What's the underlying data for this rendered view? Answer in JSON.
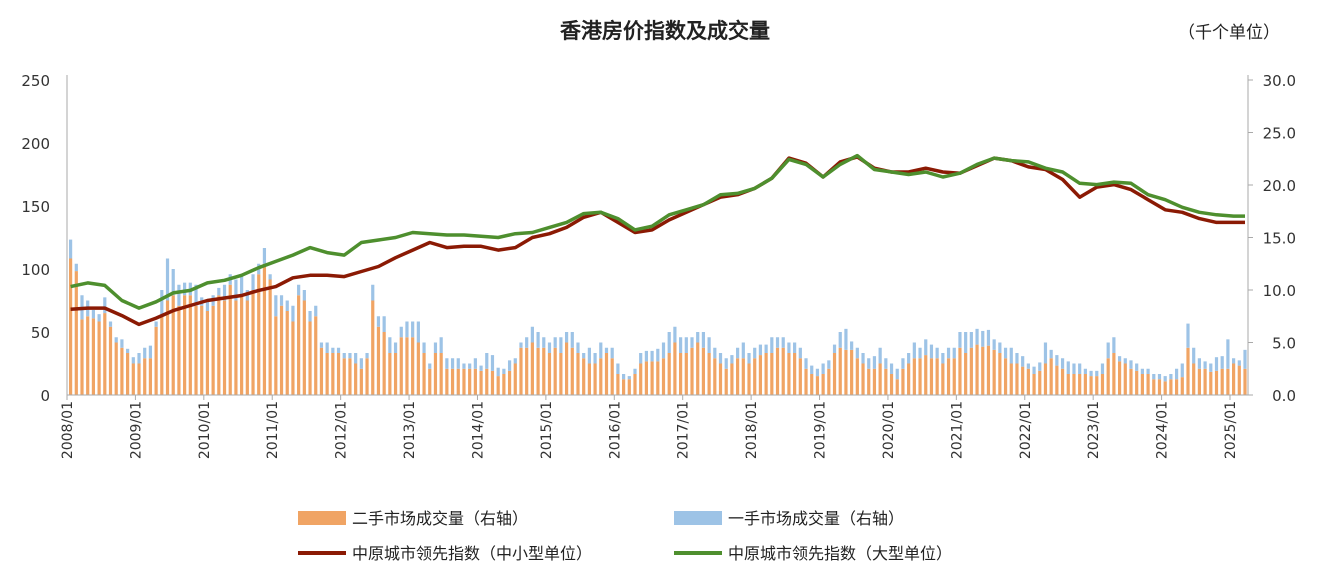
{
  "chart_data": {
    "type": "bar+line",
    "title": "香港房价指数及成交量",
    "right_axis_unit": "（千个单位）",
    "left_axis": {
      "range": [
        0,
        250
      ],
      "ticks": [
        "0",
        "50",
        "100",
        "150",
        "200",
        "250"
      ]
    },
    "right_axis": {
      "range": [
        0,
        30
      ],
      "ticks": [
        "0.0",
        "5.0",
        "10.0",
        "15.0",
        "20.0",
        "25.0",
        "30.0"
      ]
    },
    "x_ticks": [
      "2008/01",
      "2009/01",
      "2010/01",
      "2011/01",
      "2012/01",
      "2013/01",
      "2014/01",
      "2015/01",
      "2016/01",
      "2017/01",
      "2018/01",
      "2019/01",
      "2020/01",
      "2021/01",
      "2022/01",
      "2023/01",
      "2024/01",
      "2025/01"
    ],
    "grid": false,
    "legend_position": "bottom",
    "colors": {
      "secondary": "#F0A464",
      "primary": "#9DC3E6",
      "small_mid": "#8B1A04",
      "large": "#4E8F2E"
    },
    "legend": {
      "secondary": "二手市场成交量（右轴）",
      "primary": "一手市场成交量（右轴）",
      "small_mid": "中原城市领先指数（中小型单位）",
      "large": "中原城市领先指数（大型单位）"
    },
    "bars_monthly": [
      {
        "year": 2008,
        "secondary": [
          13.0,
          11.8,
          7.2,
          7.5,
          7.3,
          7.0,
          7.8,
          6.5,
          5.0,
          4.5,
          4.0,
          3.0
        ],
        "primary": [
          1.8,
          0.7,
          2.3,
          1.5,
          0.8,
          0.7,
          1.5,
          0.5,
          0.5,
          0.8,
          0.4,
          0.6
        ]
      },
      {
        "year": 2009,
        "secondary": [
          3.0,
          3.5,
          3.5,
          6.5,
          7.5,
          9.0,
          9.5,
          8.5,
          9.5,
          9.5,
          8.5,
          8.5
        ],
        "primary": [
          1.0,
          1.0,
          1.2,
          0.5,
          2.5,
          4.0,
          2.5,
          2.0,
          1.2,
          1.2,
          2.0,
          0.8
        ]
      },
      {
        "year": 2010,
        "secondary": [
          8.0,
          8.5,
          9.5,
          9.0,
          10.5,
          9.0,
          9.5,
          9.0,
          10.0,
          11.5,
          12.5,
          11.0
        ],
        "primary": [
          1.0,
          1.0,
          0.7,
          1.5,
          1.0,
          2.0,
          2.0,
          1.0,
          1.5,
          1.0,
          1.5,
          0.5
        ]
      },
      {
        "year": 2011,
        "secondary": [
          7.5,
          8.5,
          8.0,
          7.0,
          9.5,
          9.0,
          7.0,
          7.5,
          4.5,
          4.0,
          4.0,
          4.0
        ],
        "primary": [
          2.0,
          1.0,
          1.0,
          1.5,
          1.0,
          1.0,
          1.0,
          1.0,
          0.5,
          1.0,
          0.5,
          0.5
        ]
      },
      {
        "year": 2012,
        "secondary": [
          3.5,
          3.5,
          3.0,
          2.5,
          3.5,
          9.0,
          6.5,
          6.0,
          4.0,
          4.0,
          5.5,
          5.5
        ],
        "primary": [
          0.5,
          0.5,
          1.0,
          1.0,
          0.5,
          1.5,
          1.0,
          1.5,
          1.5,
          1.0,
          1.0,
          1.5
        ]
      },
      {
        "year": 2013,
        "secondary": [
          5.5,
          5.0,
          4.0,
          2.5,
          4.0,
          4.0,
          2.5,
          2.5,
          2.5,
          2.5,
          2.5,
          2.5
        ],
        "primary": [
          1.5,
          2.0,
          1.0,
          0.5,
          1.0,
          1.5,
          1.0,
          1.0,
          1.0,
          0.5,
          0.5,
          1.0
        ]
      },
      {
        "year": 2014,
        "secondary": [
          2.3,
          2.5,
          2.3,
          1.8,
          2.0,
          2.3,
          3.0,
          4.5,
          4.5,
          5.0,
          4.5,
          4.5
        ],
        "primary": [
          0.5,
          1.5,
          1.5,
          0.8,
          0.5,
          1.0,
          0.5,
          0.5,
          1.0,
          1.5,
          1.5,
          1.0
        ]
      },
      {
        "year": 2015,
        "secondary": [
          4.0,
          4.5,
          4.0,
          5.0,
          4.5,
          4.0,
          3.5,
          3.0,
          3.0,
          3.5,
          4.0,
          3.5
        ],
        "primary": [
          1.0,
          1.0,
          1.5,
          1.0,
          1.5,
          1.0,
          0.5,
          1.5,
          1.0,
          1.5,
          0.5,
          1.0
        ]
      },
      {
        "year": 2016,
        "secondary": [
          2.0,
          1.5,
          1.5,
          2.0,
          3.0,
          3.2,
          3.2,
          3.2,
          3.5,
          4.0,
          5.0,
          4.0
        ],
        "primary": [
          1.0,
          0.5,
          0.3,
          0.5,
          1.0,
          1.0,
          1.0,
          1.2,
          1.5,
          2.0,
          1.5,
          1.5
        ]
      },
      {
        "year": 2017,
        "secondary": [
          4.0,
          4.5,
          5.0,
          4.5,
          4.0,
          3.5,
          3.0,
          2.5,
          3.0,
          3.5,
          3.5,
          3.0
        ],
        "primary": [
          1.5,
          1.0,
          1.0,
          1.5,
          1.5,
          1.0,
          1.0,
          1.0,
          0.8,
          1.0,
          1.5,
          1.0
        ]
      },
      {
        "year": 2018,
        "secondary": [
          3.5,
          3.8,
          4.0,
          4.0,
          4.5,
          4.5,
          4.0,
          4.0,
          3.5,
          2.5,
          2.0,
          1.8
        ],
        "primary": [
          1.0,
          1.0,
          0.8,
          1.5,
          1.0,
          1.0,
          1.0,
          1.0,
          1.0,
          1.0,
          0.8,
          0.7
        ]
      },
      {
        "year": 2019,
        "secondary": [
          2.0,
          2.5,
          4.0,
          4.5,
          4.3,
          4.3,
          3.5,
          3.0,
          2.5,
          2.5,
          3.0,
          2.5
        ],
        "primary": [
          1.0,
          0.8,
          0.8,
          1.5,
          2.0,
          0.8,
          1.0,
          1.0,
          1.0,
          1.2,
          1.5,
          1.0
        ]
      },
      {
        "year": 2020,
        "secondary": [
          2.0,
          1.5,
          2.5,
          3.0,
          3.5,
          3.5,
          3.8,
          3.5,
          3.5,
          3.0,
          3.5,
          3.5
        ],
        "primary": [
          1.0,
          1.0,
          1.0,
          1.0,
          1.5,
          1.0,
          1.5,
          1.3,
          1.0,
          1.0,
          1.0,
          1.0
        ]
      },
      {
        "year": 2021,
        "secondary": [
          4.5,
          4.0,
          4.5,
          4.8,
          4.6,
          4.7,
          4.3,
          4.0,
          3.5,
          3.0,
          3.0,
          2.7
        ],
        "primary": [
          1.5,
          2.0,
          1.5,
          1.5,
          1.5,
          1.5,
          1.0,
          1.0,
          1.0,
          1.5,
          1.0,
          1.0
        ]
      },
      {
        "year": 2022,
        "secondary": [
          2.5,
          2.0,
          2.3,
          3.0,
          3.5,
          2.8,
          2.5,
          2.0,
          2.0,
          2.0,
          2.0,
          1.8
        ],
        "primary": [
          0.5,
          0.7,
          0.8,
          2.0,
          0.8,
          1.0,
          1.0,
          1.2,
          1.0,
          1.0,
          0.5,
          0.5
        ]
      },
      {
        "year": 2023,
        "secondary": [
          1.8,
          2.0,
          3.5,
          4.0,
          3.2,
          3.0,
          2.5,
          2.3,
          2.0,
          2.0,
          1.5,
          1.5
        ],
        "primary": [
          0.5,
          1.0,
          1.5,
          1.5,
          0.5,
          0.5,
          0.8,
          0.7,
          0.5,
          0.5,
          0.5,
          0.5
        ]
      },
      {
        "year": 2024,
        "secondary": [
          1.3,
          1.5,
          1.5,
          1.7,
          4.5,
          3.0,
          2.5,
          2.5,
          2.2,
          2.3,
          2.5,
          2.5
        ],
        "primary": [
          0.5,
          0.5,
          1.0,
          1.3,
          2.3,
          1.5,
          1.0,
          0.7,
          0.8,
          1.3,
          1.2,
          2.8
        ]
      },
      {
        "year": 2025,
        "secondary": [
          3.0,
          2.8,
          2.5
        ],
        "primary": [
          0.5,
          0.5,
          1.8
        ]
      }
    ],
    "lines": {
      "small_mid": [
        [
          "2008/01",
          68
        ],
        [
          "2008/04",
          69
        ],
        [
          "2008/07",
          69
        ],
        [
          "2008/10",
          63
        ],
        [
          "2009/01",
          56
        ],
        [
          "2009/04",
          61
        ],
        [
          "2009/07",
          67
        ],
        [
          "2009/10",
          71
        ],
        [
          "2010/01",
          75
        ],
        [
          "2010/04",
          77
        ],
        [
          "2010/07",
          79
        ],
        [
          "2010/10",
          83
        ],
        [
          "2011/01",
          86
        ],
        [
          "2011/04",
          93
        ],
        [
          "2011/07",
          95
        ],
        [
          "2011/10",
          95
        ],
        [
          "2012/01",
          94
        ],
        [
          "2012/04",
          98
        ],
        [
          "2012/07",
          102
        ],
        [
          "2012/10",
          109
        ],
        [
          "2013/01",
          115
        ],
        [
          "2013/04",
          121
        ],
        [
          "2013/07",
          117
        ],
        [
          "2013/10",
          118
        ],
        [
          "2014/01",
          118
        ],
        [
          "2014/04",
          115
        ],
        [
          "2014/07",
          117
        ],
        [
          "2014/10",
          125
        ],
        [
          "2015/01",
          128
        ],
        [
          "2015/04",
          133
        ],
        [
          "2015/07",
          141
        ],
        [
          "2015/10",
          145
        ],
        [
          "2016/01",
          137
        ],
        [
          "2016/04",
          129
        ],
        [
          "2016/07",
          131
        ],
        [
          "2016/10",
          139
        ],
        [
          "2017/01",
          145
        ],
        [
          "2017/04",
          151
        ],
        [
          "2017/07",
          157
        ],
        [
          "2017/10",
          159
        ],
        [
          "2018/01",
          164
        ],
        [
          "2018/04",
          172
        ],
        [
          "2018/07",
          188
        ],
        [
          "2018/10",
          184
        ],
        [
          "2019/01",
          173
        ],
        [
          "2019/04",
          185
        ],
        [
          "2019/07",
          189
        ],
        [
          "2019/10",
          180
        ],
        [
          "2020/01",
          177
        ],
        [
          "2020/04",
          177
        ],
        [
          "2020/07",
          180
        ],
        [
          "2020/10",
          177
        ],
        [
          "2021/01",
          176
        ],
        [
          "2021/04",
          182
        ],
        [
          "2021/07",
          188
        ],
        [
          "2021/10",
          186
        ],
        [
          "2022/01",
          181
        ],
        [
          "2022/04",
          179
        ],
        [
          "2022/07",
          171
        ],
        [
          "2022/10",
          157
        ],
        [
          "2023/01",
          165
        ],
        [
          "2023/04",
          167
        ],
        [
          "2023/07",
          163
        ],
        [
          "2023/10",
          155
        ],
        [
          "2024/01",
          147
        ],
        [
          "2024/04",
          145
        ],
        [
          "2024/07",
          140
        ],
        [
          "2024/10",
          137
        ],
        [
          "2025/01",
          137
        ],
        [
          "2025/03",
          137
        ]
      ],
      "large": [
        [
          "2008/01",
          86
        ],
        [
          "2008/04",
          89
        ],
        [
          "2008/07",
          87
        ],
        [
          "2008/10",
          75
        ],
        [
          "2009/01",
          69
        ],
        [
          "2009/04",
          74
        ],
        [
          "2009/07",
          81
        ],
        [
          "2009/10",
          83
        ],
        [
          "2010/01",
          89
        ],
        [
          "2010/04",
          91
        ],
        [
          "2010/07",
          95
        ],
        [
          "2010/10",
          101
        ],
        [
          "2011/01",
          106
        ],
        [
          "2011/04",
          111
        ],
        [
          "2011/07",
          117
        ],
        [
          "2011/10",
          113
        ],
        [
          "2012/01",
          111
        ],
        [
          "2012/04",
          121
        ],
        [
          "2012/07",
          123
        ],
        [
          "2012/10",
          125
        ],
        [
          "2013/01",
          129
        ],
        [
          "2013/04",
          128
        ],
        [
          "2013/07",
          127
        ],
        [
          "2013/10",
          127
        ],
        [
          "2014/01",
          126
        ],
        [
          "2014/04",
          125
        ],
        [
          "2014/07",
          128
        ],
        [
          "2014/10",
          129
        ],
        [
          "2015/01",
          133
        ],
        [
          "2015/04",
          137
        ],
        [
          "2015/07",
          144
        ],
        [
          "2015/10",
          145
        ],
        [
          "2016/01",
          140
        ],
        [
          "2016/04",
          131
        ],
        [
          "2016/07",
          134
        ],
        [
          "2016/10",
          143
        ],
        [
          "2017/01",
          147
        ],
        [
          "2017/04",
          151
        ],
        [
          "2017/07",
          159
        ],
        [
          "2017/10",
          160
        ],
        [
          "2018/01",
          164
        ],
        [
          "2018/04",
          172
        ],
        [
          "2018/07",
          187
        ],
        [
          "2018/10",
          183
        ],
        [
          "2019/01",
          173
        ],
        [
          "2019/04",
          183
        ],
        [
          "2019/07",
          190
        ],
        [
          "2019/10",
          179
        ],
        [
          "2020/01",
          177
        ],
        [
          "2020/04",
          175
        ],
        [
          "2020/07",
          177
        ],
        [
          "2020/10",
          173
        ],
        [
          "2021/01",
          176
        ],
        [
          "2021/04",
          183
        ],
        [
          "2021/07",
          188
        ],
        [
          "2021/10",
          186
        ],
        [
          "2022/01",
          185
        ],
        [
          "2022/04",
          180
        ],
        [
          "2022/07",
          177
        ],
        [
          "2022/10",
          168
        ],
        [
          "2023/01",
          167
        ],
        [
          "2023/04",
          169
        ],
        [
          "2023/07",
          168
        ],
        [
          "2023/10",
          159
        ],
        [
          "2024/01",
          155
        ],
        [
          "2024/04",
          149
        ],
        [
          "2024/07",
          145
        ],
        [
          "2024/10",
          143
        ],
        [
          "2025/01",
          142
        ],
        [
          "2025/03",
          142
        ]
      ]
    }
  }
}
